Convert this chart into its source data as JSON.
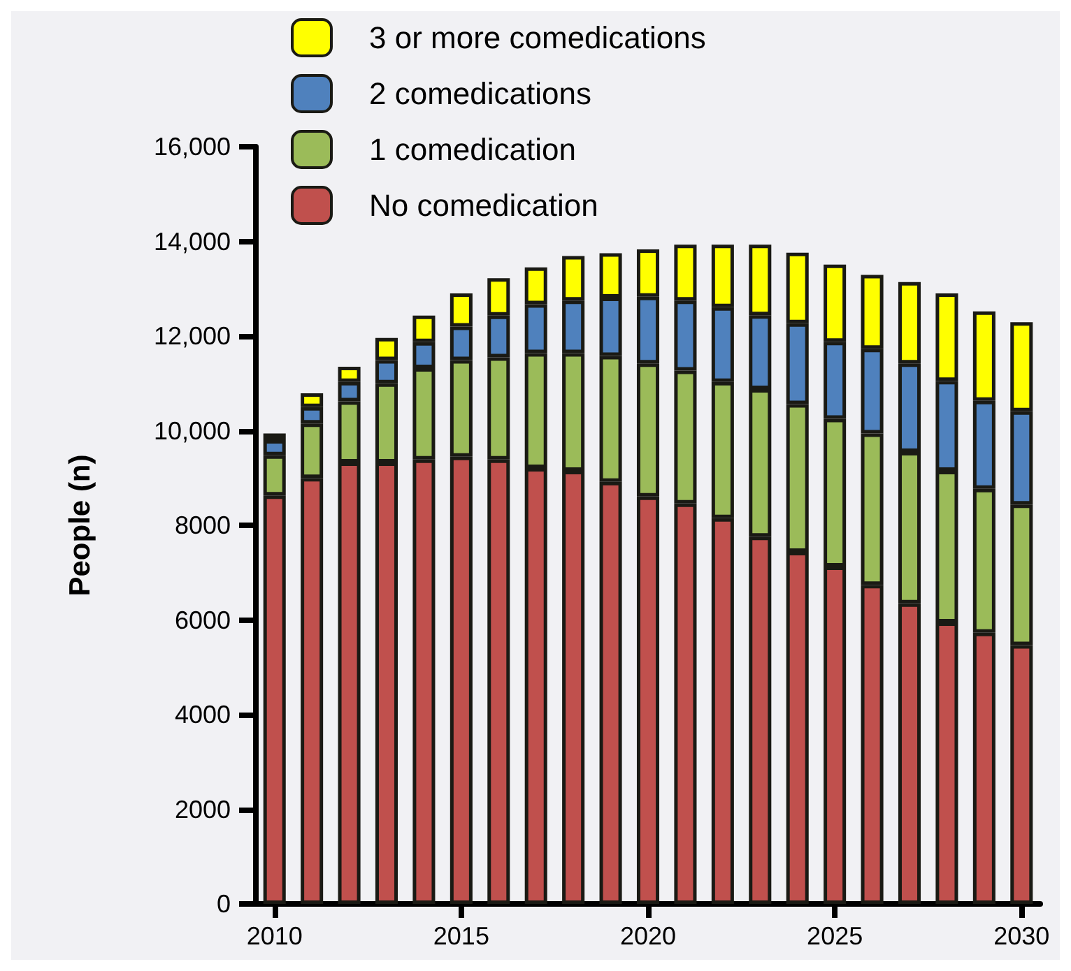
{
  "chart_data": {
    "type": "bar",
    "stacked": true,
    "ylabel": "People (n)",
    "categories": [
      "2010",
      null,
      null,
      null,
      null,
      "2015",
      null,
      null,
      null,
      null,
      "2020",
      null,
      null,
      null,
      null,
      "2025",
      null,
      null,
      null,
      null,
      "2030"
    ],
    "series": [
      {
        "name": "No comedication",
        "color": "#c0504d",
        "values": [
          8630,
          9000,
          9330,
          9330,
          9390,
          9450,
          9390,
          9210,
          9150,
          8920,
          8610,
          8460,
          8150,
          7760,
          7440,
          7130,
          6740,
          6350,
          5950,
          5730,
          5470
        ]
      },
      {
        "name": "1 comedication",
        "color": "#9bbb59",
        "values": [
          850,
          1150,
          1290,
          1670,
          1930,
          2040,
          2160,
          2430,
          2490,
          2660,
          2810,
          2810,
          2880,
          3120,
          3120,
          3120,
          3200,
          3200,
          3200,
          3040,
          2970
        ]
      },
      {
        "name": "2 comedications",
        "color": "#4f81bd",
        "values": [
          320,
          350,
          410,
          490,
          550,
          710,
          880,
          1030,
          1110,
          1230,
          1410,
          1480,
          1580,
          1560,
          1710,
          1630,
          1790,
          1870,
          1900,
          1860,
          1970
        ]
      },
      {
        "name": "3 or more comedications",
        "color": "#ffff00",
        "values": [
          140,
          290,
          320,
          470,
          560,
          700,
          790,
          780,
          940,
          940,
          1000,
          1180,
          1320,
          1490,
          1490,
          1630,
          1560,
          1720,
          1850,
          1890,
          1880
        ]
      }
    ],
    "ylim": [
      0,
      16000
    ],
    "yticks": [
      0,
      2000,
      4000,
      6000,
      8000,
      {
        "value": 10000,
        "label": "10,000"
      },
      {
        "value": 12000,
        "label": "12,000"
      },
      {
        "value": 14000,
        "label": "14,000"
      },
      {
        "value": 16000,
        "label": "16,000"
      }
    ],
    "grid": false,
    "legend": "top"
  }
}
